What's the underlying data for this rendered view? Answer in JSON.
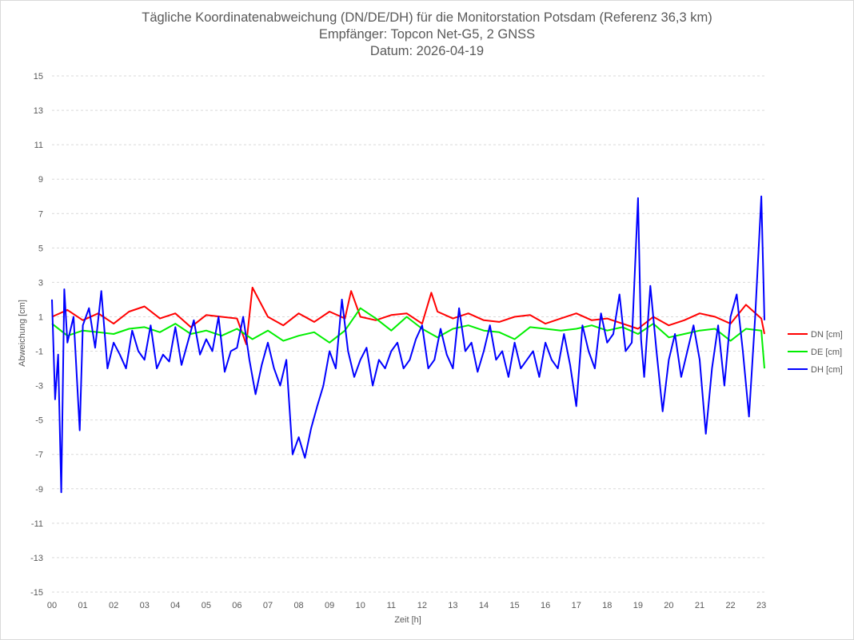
{
  "chart_data": {
    "type": "line",
    "title": "Tägliche Koordinatenabweichung (DN/DE/DH) für die Monitorstation Potsdam (Referenz 36,3 km)",
    "subtitle": "Empfänger: Topcon Net-G5, 2 GNSS",
    "date_label": "Datum: 2026-04-19",
    "xlabel": "Zeit [h]",
    "ylabel": "Abweichung [cm]",
    "x_ticks": [
      "00",
      "01",
      "02",
      "03",
      "04",
      "05",
      "06",
      "07",
      "08",
      "09",
      "10",
      "11",
      "12",
      "13",
      "14",
      "15",
      "16",
      "17",
      "18",
      "19",
      "20",
      "21",
      "22",
      "23"
    ],
    "xlim": [
      0,
      23.1
    ],
    "ylim": [
      -15,
      15
    ],
    "y_ticks": [
      "-15",
      "-13",
      "-11",
      "-9",
      "-7",
      "-5",
      "-3",
      "-1",
      "1",
      "3",
      "5",
      "7",
      "9",
      "11",
      "13",
      "15"
    ],
    "grid": true,
    "legend_position": "right",
    "series": [
      {
        "name": "DN [cm]",
        "color": "#ff0000",
        "x": [
          0,
          0.5,
          1,
          1.5,
          2,
          2.5,
          3,
          3.5,
          4,
          4.5,
          5,
          5.5,
          6,
          6.3,
          6.5,
          7,
          7.5,
          8,
          8.5,
          9,
          9.5,
          9.7,
          10,
          10.5,
          11,
          11.5,
          12,
          12.3,
          12.5,
          13,
          13.5,
          14,
          14.5,
          15,
          15.5,
          16,
          16.5,
          17,
          17.5,
          18,
          18.5,
          19,
          19.5,
          20,
          20.5,
          21,
          21.5,
          22,
          22.5,
          23,
          23.1
        ],
        "y": [
          1.0,
          1.4,
          0.8,
          1.2,
          0.6,
          1.3,
          1.6,
          0.9,
          1.2,
          0.4,
          1.1,
          1.0,
          0.9,
          -0.6,
          2.7,
          1.0,
          0.5,
          1.2,
          0.7,
          1.3,
          0.9,
          2.5,
          1.0,
          0.8,
          1.1,
          1.2,
          0.6,
          2.4,
          1.3,
          0.9,
          1.2,
          0.8,
          0.7,
          1.0,
          1.1,
          0.6,
          0.9,
          1.2,
          0.8,
          0.9,
          0.6,
          0.3,
          1.0,
          0.5,
          0.8,
          1.2,
          1.0,
          0.6,
          1.7,
          0.9,
          0.0
        ]
      },
      {
        "name": "DE [cm]",
        "color": "#00ee00",
        "x": [
          0,
          0.5,
          1,
          1.5,
          2,
          2.5,
          3,
          3.5,
          4,
          4.5,
          5,
          5.5,
          6,
          6.5,
          7,
          7.5,
          8,
          8.5,
          9,
          9.5,
          10,
          10.5,
          11,
          11.5,
          12,
          12.5,
          13,
          13.5,
          14,
          14.5,
          15,
          15.5,
          16,
          16.5,
          17,
          17.5,
          18,
          18.5,
          19,
          19.5,
          20,
          20.5,
          21,
          21.5,
          22,
          22.5,
          23,
          23.1
        ],
        "y": [
          0.6,
          -0.1,
          0.2,
          0.1,
          0.0,
          0.3,
          0.4,
          0.1,
          0.6,
          0.0,
          0.2,
          -0.1,
          0.3,
          -0.3,
          0.2,
          -0.4,
          -0.1,
          0.1,
          -0.5,
          0.2,
          1.5,
          0.9,
          0.2,
          1.0,
          0.3,
          -0.2,
          0.3,
          0.5,
          0.2,
          0.1,
          -0.3,
          0.4,
          0.3,
          0.2,
          0.3,
          0.5,
          0.2,
          0.4,
          0.0,
          0.6,
          -0.2,
          0.0,
          0.2,
          0.3,
          -0.4,
          0.3,
          0.2,
          -2.0
        ]
      },
      {
        "name": "DH [cm]",
        "color": "#0000ff",
        "x": [
          0,
          0.1,
          0.2,
          0.3,
          0.4,
          0.5,
          0.7,
          0.9,
          1.0,
          1.2,
          1.4,
          1.6,
          1.8,
          2.0,
          2.2,
          2.4,
          2.6,
          2.8,
          3.0,
          3.2,
          3.4,
          3.6,
          3.8,
          4.0,
          4.2,
          4.4,
          4.6,
          4.8,
          5.0,
          5.2,
          5.4,
          5.6,
          5.8,
          6.0,
          6.2,
          6.4,
          6.6,
          6.8,
          7.0,
          7.2,
          7.4,
          7.6,
          7.8,
          8.0,
          8.2,
          8.4,
          8.6,
          8.8,
          9.0,
          9.2,
          9.4,
          9.6,
          9.8,
          10.0,
          10.2,
          10.4,
          10.6,
          10.8,
          11.0,
          11.2,
          11.4,
          11.6,
          11.8,
          12.0,
          12.2,
          12.4,
          12.6,
          12.8,
          13.0,
          13.2,
          13.4,
          13.6,
          13.8,
          14.0,
          14.2,
          14.4,
          14.6,
          14.8,
          15.0,
          15.2,
          15.4,
          15.6,
          15.8,
          16.0,
          16.2,
          16.4,
          16.6,
          16.8,
          17.0,
          17.2,
          17.4,
          17.6,
          17.8,
          18.0,
          18.2,
          18.4,
          18.6,
          18.8,
          19.0,
          19.1,
          19.2,
          19.4,
          19.6,
          19.8,
          20.0,
          20.2,
          20.4,
          20.6,
          20.8,
          21.0,
          21.2,
          21.4,
          21.6,
          21.8,
          22.0,
          22.2,
          22.4,
          22.6,
          22.8,
          23.0,
          23.1
        ],
        "y": [
          2.0,
          -3.8,
          -1.2,
          -9.2,
          2.6,
          -0.5,
          1.0,
          -5.6,
          0.5,
          1.5,
          -0.8,
          2.5,
          -2.0,
          -0.5,
          -1.2,
          -2.0,
          0.2,
          -1.0,
          -1.5,
          0.5,
          -2.0,
          -1.2,
          -1.6,
          0.4,
          -1.8,
          -0.5,
          0.8,
          -1.2,
          -0.3,
          -1.0,
          1.0,
          -2.2,
          -1.0,
          -0.8,
          1.0,
          -1.5,
          -3.5,
          -1.8,
          -0.5,
          -2.0,
          -3.0,
          -1.5,
          -7.0,
          -6.0,
          -7.2,
          -5.5,
          -4.2,
          -3.0,
          -1.0,
          -2.0,
          2.0,
          -1.0,
          -2.5,
          -1.5,
          -0.8,
          -3.0,
          -1.5,
          -2.0,
          -1.0,
          -0.5,
          -2.0,
          -1.5,
          -0.3,
          0.5,
          -2.0,
          -1.5,
          0.3,
          -1.2,
          -2.0,
          1.5,
          -1.0,
          -0.5,
          -2.2,
          -1.0,
          0.5,
          -1.5,
          -1.0,
          -2.5,
          -0.5,
          -2.0,
          -1.5,
          -1.0,
          -2.5,
          -0.5,
          -1.5,
          -2.0,
          0.0,
          -1.8,
          -4.2,
          0.5,
          -1.0,
          -2.0,
          1.2,
          -0.5,
          0.0,
          2.3,
          -1.0,
          -0.5,
          7.9,
          -0.3,
          -2.5,
          2.8,
          -1.0,
          -4.5,
          -1.5,
          0.0,
          -2.5,
          -1.0,
          0.5,
          -1.5,
          -5.8,
          -2.0,
          0.5,
          -3.0,
          1.0,
          2.3,
          -1.0,
          -4.8,
          1.0,
          8.0,
          0.8
        ]
      }
    ]
  }
}
